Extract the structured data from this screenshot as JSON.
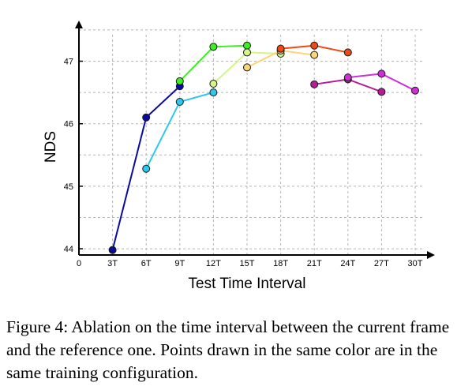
{
  "chart_data": {
    "type": "line",
    "xlabel": "Test Time Interval",
    "ylabel": "NDS",
    "x_ticks": [
      "0",
      "3T",
      "6T",
      "9T",
      "12T",
      "15T",
      "18T",
      "21T",
      "24T",
      "27T",
      "30T"
    ],
    "y_ticks": [
      "44",
      "45",
      "46",
      "47"
    ],
    "xlim": [
      0,
      30
    ],
    "ylim": [
      43.9,
      47.6
    ],
    "grid": true,
    "series": [
      {
        "color": "#0a0aa0",
        "points": [
          [
            3,
            43.98
          ],
          [
            6,
            46.1
          ],
          [
            9,
            46.6
          ]
        ]
      },
      {
        "color": "#2fc7ea",
        "points": [
          [
            6,
            45.28
          ],
          [
            9,
            46.35
          ],
          [
            12,
            46.5
          ]
        ]
      },
      {
        "color": "#3cee22",
        "points": [
          [
            9,
            46.68
          ],
          [
            12,
            47.23
          ],
          [
            15,
            47.25
          ]
        ]
      },
      {
        "color": "#d5f585",
        "points": [
          [
            12,
            46.64
          ],
          [
            15,
            47.14
          ],
          [
            18,
            47.12
          ]
        ]
      },
      {
        "color": "#fcd57a",
        "points": [
          [
            15,
            46.9
          ],
          [
            18,
            47.17
          ],
          [
            21,
            47.1
          ]
        ]
      },
      {
        "color": "#ee4a15",
        "points": [
          [
            18,
            47.2
          ],
          [
            21,
            47.25
          ],
          [
            24,
            47.14
          ]
        ]
      },
      {
        "color": "#b71a9a",
        "points": [
          [
            21,
            46.63
          ],
          [
            24,
            46.71
          ],
          [
            27,
            46.51
          ]
        ]
      },
      {
        "color": "#cf2fd6",
        "points": [
          [
            24,
            46.74
          ],
          [
            27,
            46.8
          ],
          [
            30,
            46.53
          ]
        ]
      }
    ]
  },
  "caption": "Figure 4: Ablation on the time interval between the current frame and the reference one. Points drawn in the same color are in the same training configuration."
}
